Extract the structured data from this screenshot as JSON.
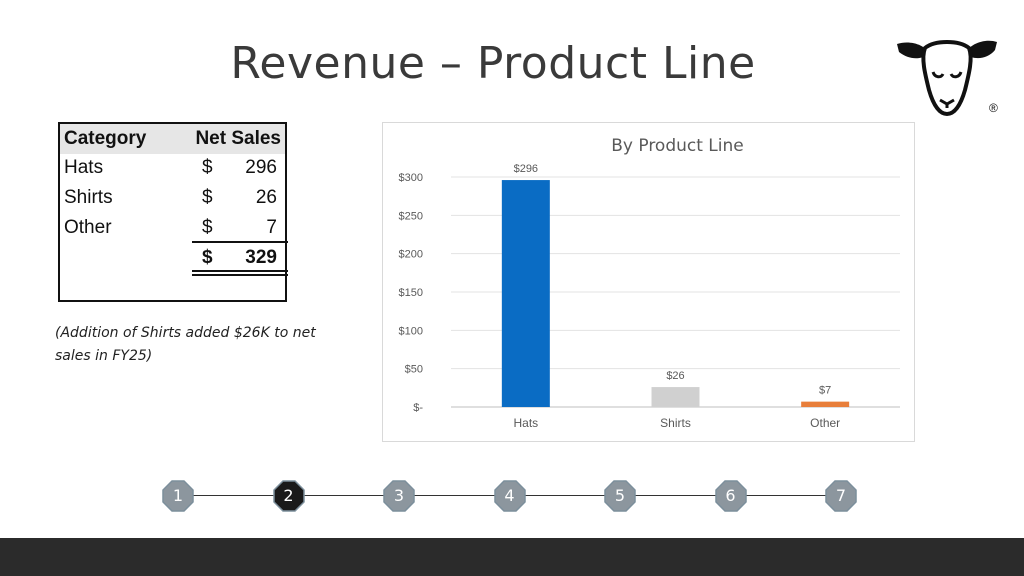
{
  "slide": {
    "title": "Revenue – Product Line"
  },
  "table": {
    "headers": [
      "Category",
      "Net Sales"
    ],
    "rows": [
      {
        "category": "Hats",
        "currency": "$",
        "value": "296"
      },
      {
        "category": "Shirts",
        "currency": "$",
        "value": "26"
      },
      {
        "category": "Other",
        "currency": "$",
        "value": "7"
      }
    ],
    "total": {
      "currency": "$",
      "value": "329"
    }
  },
  "note": "(Addition of Shirts added $26K to net sales in FY25)",
  "chart_data": {
    "type": "bar",
    "title": "By Product Line",
    "categories": [
      "Hats",
      "Shirts",
      "Other"
    ],
    "values": [
      296,
      26,
      7
    ],
    "data_labels": [
      "$296",
      "$26",
      "$7"
    ],
    "colors": [
      "#0a6cc4",
      "#d0d0d0",
      "#e87e3a"
    ],
    "ylim": [
      0,
      300
    ],
    "yticks": [
      0,
      50,
      100,
      150,
      200,
      250,
      300
    ],
    "ytick_labels": [
      "$-",
      "$50",
      "$100",
      "$150",
      "$200",
      "$250",
      "$300"
    ],
    "grid": true,
    "xlabel": "",
    "ylabel": ""
  },
  "timeline": {
    "steps": [
      "1",
      "2",
      "3",
      "4",
      "5",
      "6",
      "7"
    ],
    "active": 1,
    "colors": {
      "inactive_fill": "#8c969e",
      "active_fill": "#1a1a1a",
      "border": "#7c8f9c"
    }
  },
  "logo": {
    "icon": "sheep-head-icon",
    "mark": "®"
  }
}
